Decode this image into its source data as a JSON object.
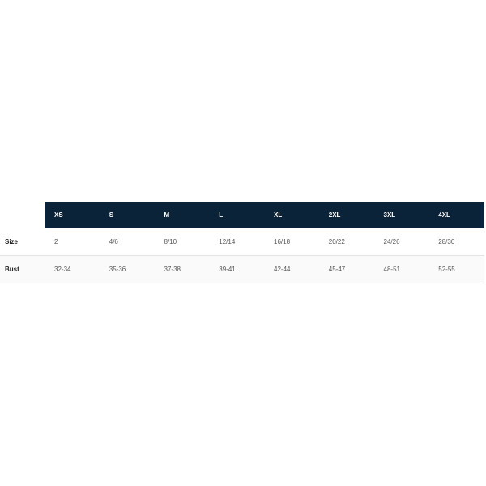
{
  "table": {
    "headers": [
      "XS",
      "S",
      "M",
      "L",
      "XL",
      "2XL",
      "3XL",
      "4XL"
    ],
    "rows": [
      {
        "label": "Size",
        "values": [
          "2",
          "4/6",
          "8/10",
          "12/14",
          "16/18",
          "20/22",
          "24/26",
          "28/30"
        ]
      },
      {
        "label": "Bust",
        "values": [
          "32-34",
          "35-36",
          "37-38",
          "39-41",
          "42-44",
          "45-47",
          "48-51",
          "52-55"
        ]
      }
    ]
  },
  "colors": {
    "header_bg": "#0b2338",
    "header_text": "#ffffff",
    "alt_row_bg": "#fafafa"
  }
}
